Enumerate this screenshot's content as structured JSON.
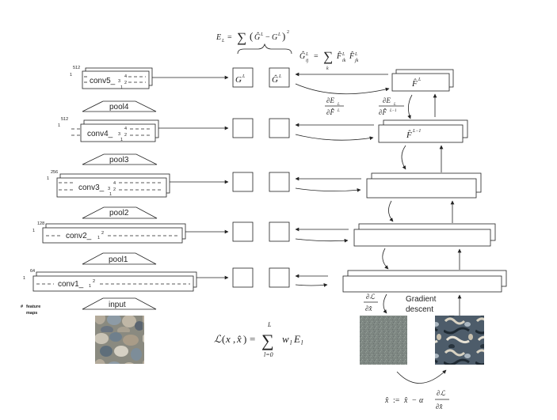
{
  "equations": {
    "style_loss_top": "E_L = ∑ (Ĝ^L − G^L)²",
    "gram_def": "Ĝ^L_ij = ∑_k F̂^L_ik F̂^L_jk",
    "grad_top": "∂E_L / ∂F̂^L",
    "grad_mid": "∂E_L / ∂F̂^{L−1}",
    "total_loss": "ℒ(x⃗, x̂⃗) = ∑_{l=0}^{L} w_l E_l",
    "dL_dx": "∂ℒ / ∂x̂⃗",
    "update_rule": "x̂⃗ := x̂⃗ − α ∂ℒ/∂x̂⃗"
  },
  "gram_labels": {
    "target": "G^L",
    "estimate": "Ĝ^L"
  },
  "feature_labels": {
    "top": "F̂^L",
    "second": "F̂^{L−1}"
  },
  "left_network": {
    "layers": [
      {
        "name": "conv5_",
        "sub": [
          "4",
          "3",
          "2",
          "1"
        ],
        "maps": "512",
        "one": "1"
      },
      {
        "name": "conv4_",
        "sub": [
          "4",
          "3",
          "2",
          "1"
        ],
        "maps": "512",
        "one": "1"
      },
      {
        "name": "conv3_",
        "sub": [
          "4",
          "3",
          "2",
          "1"
        ],
        "maps": "256",
        "one": "1"
      },
      {
        "name": "conv2_",
        "sub": [
          "2",
          "1"
        ],
        "maps": "128",
        "one": "1"
      },
      {
        "name": "conv1_",
        "sub": [
          "2",
          "1"
        ],
        "maps": "64",
        "one": "1"
      }
    ],
    "pools": [
      "pool4",
      "pool3",
      "pool2",
      "pool1"
    ],
    "input_label": "input",
    "feature_maps_label": "# feature maps"
  },
  "gradient_descent_label": "Gradient descent",
  "colors": {
    "stroke": "#222222",
    "noise": "#7e8782"
  }
}
